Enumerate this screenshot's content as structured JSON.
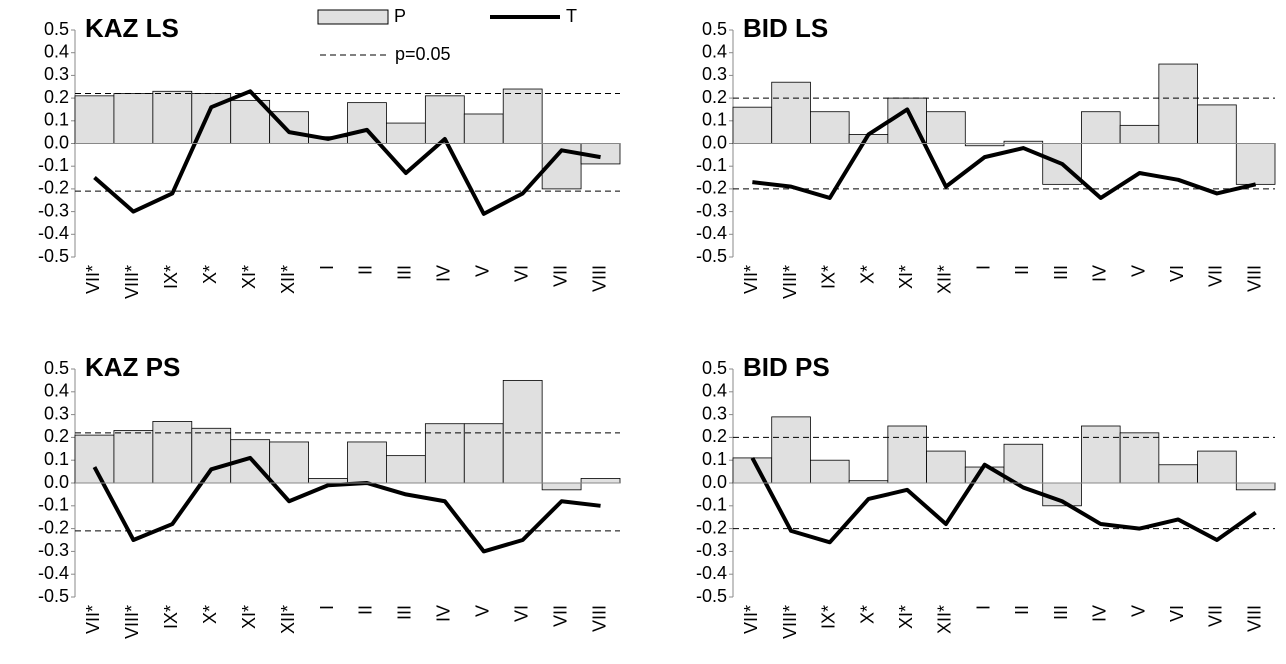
{
  "chart_data": [
    {
      "type": "combo",
      "title": "KAZ LS",
      "categories": [
        "VII*",
        "VIII*",
        "IX*",
        "X*",
        "XI*",
        "XII*",
        "I",
        "II",
        "III",
        "IV",
        "V",
        "VI",
        "VII",
        "VIII"
      ],
      "series": [
        {
          "name": "P",
          "type": "bar",
          "color": "#e0e0e0",
          "values": [
            0.21,
            0.22,
            0.23,
            0.22,
            0.19,
            0.14,
            0.03,
            0.18,
            0.09,
            0.21,
            0.13,
            0.24,
            -0.2,
            -0.09
          ]
        },
        {
          "name": "T",
          "type": "line",
          "color": "#000000",
          "values": [
            -0.15,
            -0.3,
            -0.22,
            0.16,
            0.23,
            0.05,
            0.02,
            0.06,
            -0.13,
            0.02,
            -0.31,
            -0.22,
            -0.03,
            -0.06
          ]
        }
      ],
      "threshold": {
        "name": "p=0.05",
        "values": [
          0.22,
          -0.21
        ]
      },
      "ylim": [
        -0.5,
        0.5
      ],
      "yticks": [
        0.5,
        0.4,
        0.3,
        0.2,
        0.1,
        {
          "value": 0,
          "label": "0.0"
        },
        -0.1,
        -0.2,
        -0.3,
        -0.4,
        -0.5
      ]
    },
    {
      "type": "combo",
      "title": "BID LS",
      "categories": [
        "VII*",
        "VIII*",
        "IX*",
        "X*",
        "XI*",
        "XII*",
        "I",
        "II",
        "III",
        "IV",
        "V",
        "VI",
        "VII",
        "VIII"
      ],
      "series": [
        {
          "type": "bar",
          "color": "#e0e0e0",
          "values": [
            0.16,
            0.27,
            0.14,
            0.04,
            0.2,
            0.14,
            -0.01,
            0.01,
            -0.18,
            0.14,
            0.08,
            0.35,
            0.17,
            -0.18
          ]
        },
        {
          "type": "line",
          "color": "#000000",
          "values": [
            -0.17,
            -0.19,
            -0.24,
            0.04,
            0.15,
            -0.19,
            -0.06,
            -0.02,
            -0.09,
            -0.24,
            -0.13,
            -0.16,
            -0.22,
            -0.18
          ]
        }
      ],
      "threshold": {
        "values": [
          0.2,
          -0.2
        ]
      },
      "ylim": [
        -0.5,
        0.5
      ],
      "yticks": [
        0.5,
        0.4,
        0.3,
        0.2,
        0.1,
        {
          "value": 0,
          "label": "0.0"
        },
        -0.1,
        -0.2,
        -0.3,
        -0.4,
        -0.5
      ]
    },
    {
      "type": "combo",
      "title": "KAZ PS",
      "categories": [
        "VII*",
        "VIII*",
        "IX*",
        "X*",
        "XI*",
        "XII*",
        "I",
        "II",
        "III",
        "IV",
        "V",
        "VI",
        "VII",
        "VIII"
      ],
      "series": [
        {
          "type": "bar",
          "color": "#e0e0e0",
          "values": [
            0.21,
            0.23,
            0.27,
            0.24,
            0.19,
            0.18,
            0.02,
            0.18,
            0.12,
            0.26,
            0.26,
            0.45,
            -0.03,
            0.02
          ]
        },
        {
          "type": "line",
          "color": "#000000",
          "values": [
            0.07,
            -0.25,
            -0.18,
            0.06,
            0.11,
            -0.08,
            -0.01,
            0.0,
            -0.05,
            -0.08,
            -0.3,
            -0.25,
            -0.08,
            -0.1
          ]
        }
      ],
      "threshold": {
        "values": [
          0.22,
          -0.21
        ]
      },
      "ylim": [
        -0.5,
        0.5
      ],
      "yticks": [
        0.5,
        0.4,
        0.3,
        0.2,
        0.1,
        {
          "value": 0,
          "label": "0.0"
        },
        -0.1,
        -0.2,
        -0.3,
        -0.4,
        -0.5
      ]
    },
    {
      "type": "combo",
      "title": "BID PS",
      "categories": [
        "VII*",
        "VIII*",
        "IX*",
        "X*",
        "XI*",
        "XII*",
        "I",
        "II",
        "III",
        "IV",
        "V",
        "VI",
        "VII",
        "VIII"
      ],
      "series": [
        {
          "type": "bar",
          "color": "#e0e0e0",
          "values": [
            0.11,
            0.29,
            0.1,
            0.01,
            0.25,
            0.14,
            0.07,
            0.17,
            -0.1,
            0.25,
            0.22,
            0.08,
            0.14,
            -0.03
          ]
        },
        {
          "type": "line",
          "color": "#000000",
          "values": [
            0.11,
            -0.21,
            -0.26,
            -0.07,
            -0.03,
            -0.18,
            0.08,
            -0.02,
            -0.08,
            -0.18,
            -0.2,
            -0.16,
            -0.25,
            -0.13
          ]
        }
      ],
      "threshold": {
        "values": [
          0.2,
          -0.2
        ]
      },
      "ylim": [
        -0.5,
        0.5
      ],
      "yticks": [
        0.5,
        0.4,
        0.3,
        0.2,
        0.1,
        {
          "value": 0,
          "label": "0.0"
        },
        -0.1,
        -0.2,
        -0.3,
        -0.4,
        -0.5
      ]
    }
  ]
}
